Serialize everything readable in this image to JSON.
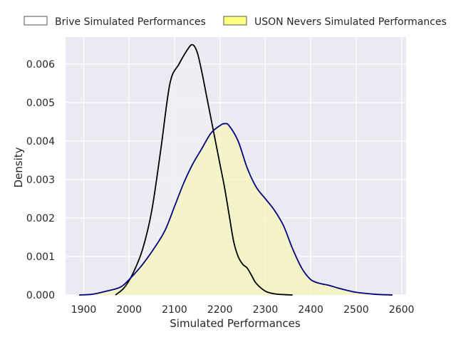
{
  "chart_data": {
    "type": "area",
    "xlabel": "Simulated Performances",
    "ylabel": "Density",
    "xlim": [
      1860,
      2610
    ],
    "ylim": [
      0,
      0.0067
    ],
    "xticks": [
      1900,
      2000,
      2100,
      2200,
      2300,
      2400,
      2500,
      2600
    ],
    "yticks": [
      0.0,
      0.001,
      0.002,
      0.003,
      0.004,
      0.005,
      0.006
    ],
    "ytick_labels": [
      "0.000",
      "0.001",
      "0.002",
      "0.003",
      "0.004",
      "0.005",
      "0.006"
    ],
    "grid": true,
    "legend_position": "top",
    "colors": {
      "plot_background": "#EAEAF2",
      "grid": "#FFFFFF",
      "brive_line": "#000000",
      "brive_fill": "#EEEEF6",
      "nevers_line": "#000080",
      "nevers_fill": "#F5F5B8",
      "nevers_legend_fill": "#FFFF80"
    },
    "series": [
      {
        "name": "Brive Simulated Performances",
        "x": [
          1970,
          1990,
          2010,
          2030,
          2050,
          2070,
          2090,
          2110,
          2130,
          2140,
          2150,
          2160,
          2170,
          2180,
          2190,
          2200,
          2210,
          2220,
          2230,
          2240,
          2250,
          2260,
          2270,
          2280,
          2300,
          2320,
          2340,
          2360
        ],
        "values": [
          0.0,
          0.0002,
          0.0006,
          0.0012,
          0.0022,
          0.0038,
          0.0055,
          0.006,
          0.0064,
          0.0065,
          0.0063,
          0.0058,
          0.0052,
          0.0046,
          0.004,
          0.0034,
          0.0028,
          0.0021,
          0.0014,
          0.001,
          0.0008,
          0.0007,
          0.0005,
          0.0003,
          0.0001,
          3e-05,
          1e-05,
          0.0
        ]
      },
      {
        "name": "USON Nevers Simulated Performances",
        "x": [
          1890,
          1920,
          1950,
          1980,
          2000,
          2030,
          2060,
          2080,
          2100,
          2120,
          2140,
          2160,
          2180,
          2200,
          2210,
          2220,
          2240,
          2260,
          2280,
          2300,
          2320,
          2340,
          2360,
          2380,
          2400,
          2420,
          2440,
          2460,
          2480,
          2500,
          2540,
          2580
        ],
        "values": [
          0.0,
          2e-05,
          0.0001,
          0.0002,
          0.0004,
          0.0008,
          0.0013,
          0.0017,
          0.0023,
          0.0029,
          0.0034,
          0.0038,
          0.0042,
          0.0044,
          0.00445,
          0.0044,
          0.004,
          0.0033,
          0.0028,
          0.0025,
          0.0022,
          0.0018,
          0.0012,
          0.0007,
          0.0004,
          0.0003,
          0.00025,
          0.00018,
          0.00012,
          7e-05,
          2e-05,
          0.0
        ]
      }
    ]
  }
}
